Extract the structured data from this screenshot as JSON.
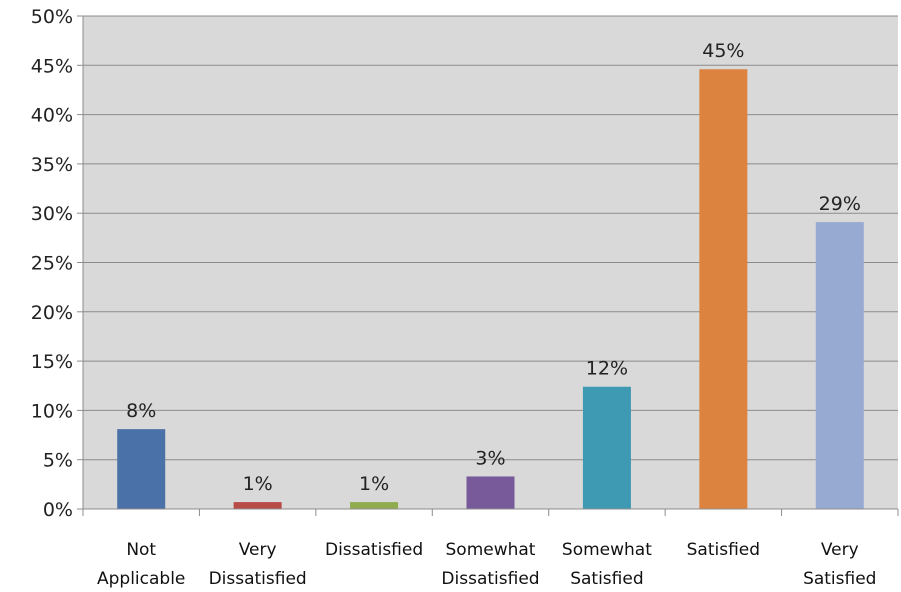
{
  "chart_data": {
    "type": "bar",
    "categories": [
      [
        "Not",
        "Applicable"
      ],
      [
        "Very",
        "Dissatisfied"
      ],
      [
        "Dissatisfied"
      ],
      [
        "Somewhat",
        "Dissatisfied"
      ],
      [
        "Somewhat",
        "Satisfied"
      ],
      [
        "Satisfied"
      ],
      [
        "Very",
        "Satisfied"
      ]
    ],
    "values": [
      8,
      1,
      1,
      3,
      12,
      45,
      29
    ],
    "plotted_values": [
      8.1,
      0.7,
      0.7,
      3.3,
      12.4,
      44.6,
      29.1
    ],
    "data_labels": [
      "8%",
      "1%",
      "1%",
      "3%",
      "12%",
      "45%",
      "29%"
    ],
    "colors": [
      "#4a72a8",
      "#b84a47",
      "#8fac4f",
      "#785a9b",
      "#3e9ab2",
      "#dd8340",
      "#97aad2"
    ],
    "ylim": [
      0,
      50
    ],
    "y_ticks": [
      0,
      5,
      10,
      15,
      20,
      25,
      30,
      35,
      40,
      45,
      50
    ],
    "y_tick_labels": [
      "0%",
      "5%",
      "10%",
      "15%",
      "20%",
      "25%",
      "30%",
      "35%",
      "40%",
      "45%",
      "50%"
    ],
    "grid": true,
    "plot_background": "#d9d9d9",
    "title": "",
    "xlabel": "",
    "ylabel": ""
  }
}
